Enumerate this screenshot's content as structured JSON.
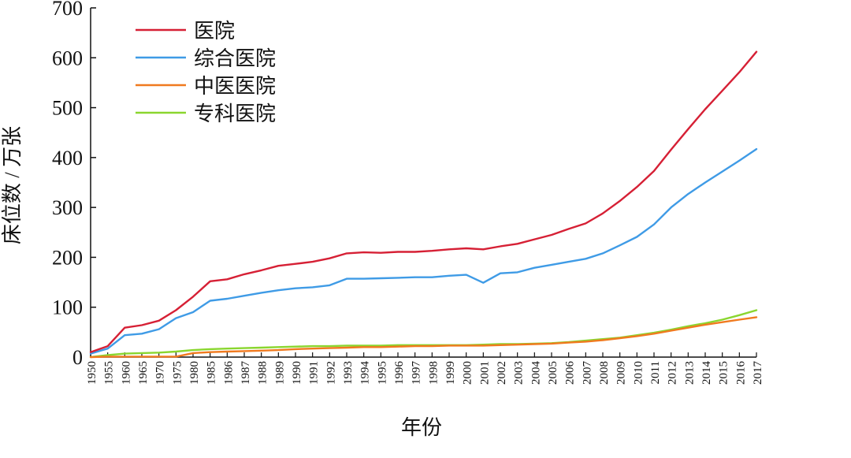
{
  "chart_data": {
    "type": "line",
    "xlabel": "年份",
    "ylabel": "床位数 / 万张",
    "ylim": [
      0,
      700
    ],
    "yticks": [
      0,
      100,
      200,
      300,
      400,
      500,
      600,
      700
    ],
    "grid": false,
    "legend_position": "top-left",
    "categories": [
      "1950",
      "1955",
      "1960",
      "1965",
      "1970",
      "1975",
      "1980",
      "1985",
      "1986",
      "1987",
      "1988",
      "1989",
      "1990",
      "1991",
      "1992",
      "1993",
      "1994",
      "1995",
      "1996",
      "1997",
      "1998",
      "1999",
      "2000",
      "2001",
      "2002",
      "2003",
      "2004",
      "2005",
      "2006",
      "2007",
      "2008",
      "2009",
      "2010",
      "2011",
      "2012",
      "2013",
      "2014",
      "2015",
      "2016",
      "2017"
    ],
    "series": [
      {
        "name": "医院",
        "color": "#d62035",
        "values": [
          10,
          22,
          59,
          64,
          73,
          94,
          121,
          152,
          156,
          166,
          174,
          183,
          187,
          191,
          198,
          208,
          210,
          209,
          211,
          211,
          213,
          216,
          218,
          216,
          222,
          227,
          236,
          245,
          257,
          268,
          288,
          313,
          341,
          373,
          416,
          457,
          497,
          534,
          571,
          612
        ]
      },
      {
        "name": "综合医院",
        "color": "#3f9be6",
        "values": [
          7,
          17,
          44,
          47,
          56,
          78,
          90,
          113,
          117,
          123,
          129,
          134,
          138,
          140,
          144,
          157,
          157,
          158,
          159,
          160,
          160,
          163,
          165,
          149,
          168,
          170,
          179,
          185,
          191,
          197,
          208,
          224,
          241,
          266,
          300,
          327,
          350,
          372,
          394,
          417
        ]
      },
      {
        "name": "中医医院",
        "color": "#f07a1f",
        "values": [
          0,
          1,
          1,
          1,
          1,
          1,
          8,
          10,
          11,
          12,
          13,
          14,
          16,
          17,
          18,
          19,
          20,
          20,
          21,
          22,
          22,
          23,
          23,
          23,
          24,
          25,
          26,
          27,
          29,
          31,
          34,
          38,
          42,
          47,
          53,
          59,
          65,
          70,
          75,
          80
        ]
      },
      {
        "name": "专科医院",
        "color": "#8ad62f",
        "values": [
          0,
          4,
          7,
          8,
          9,
          11,
          14,
          16,
          17,
          18,
          19,
          20,
          21,
          22,
          22,
          23,
          23,
          23,
          24,
          24,
          24,
          24,
          24,
          25,
          26,
          26,
          27,
          28,
          30,
          33,
          36,
          39,
          44,
          49,
          55,
          62,
          68,
          75,
          84,
          94
        ]
      }
    ]
  }
}
